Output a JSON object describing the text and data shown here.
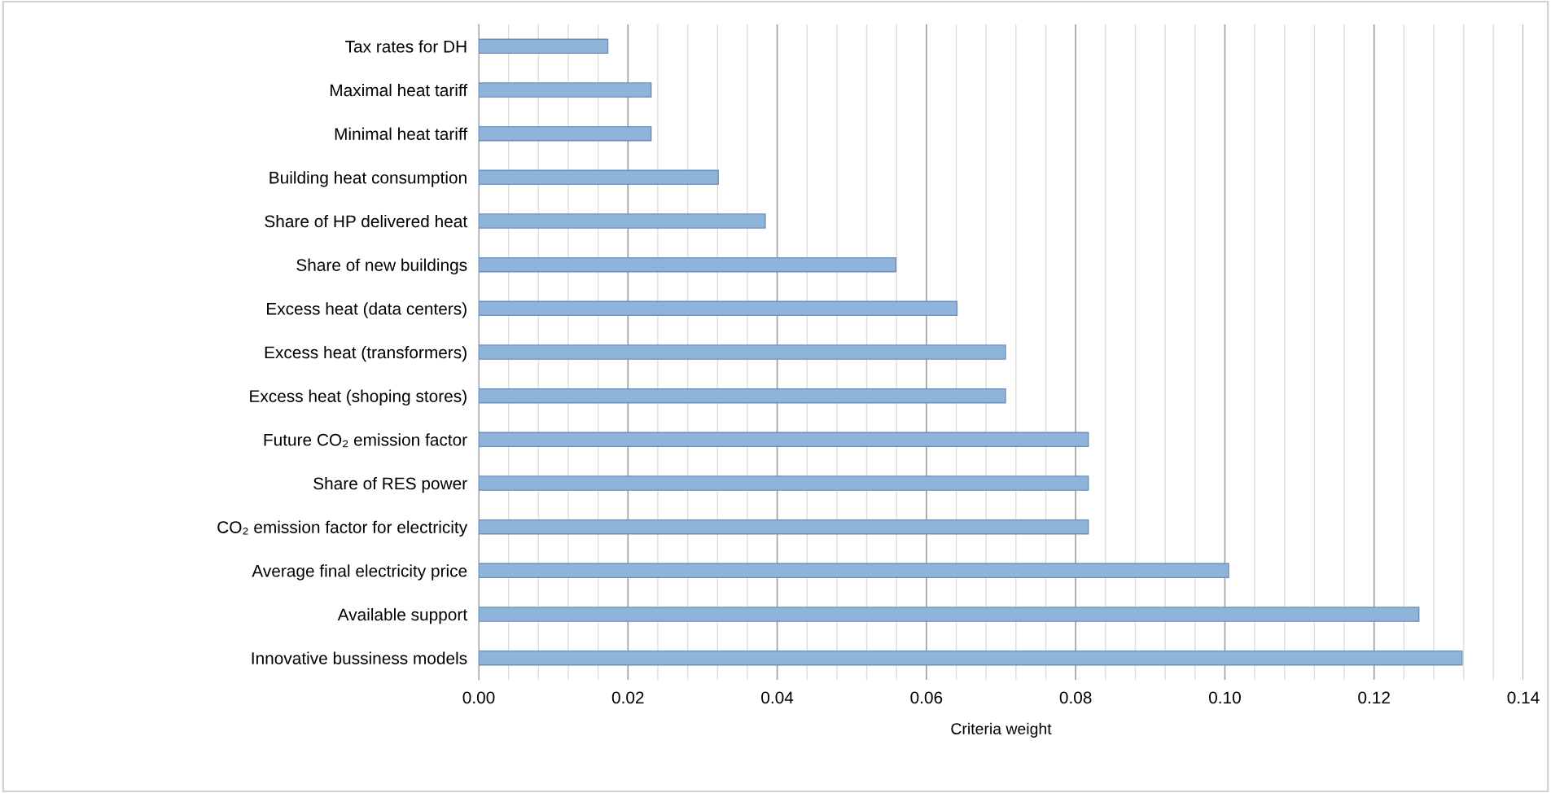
{
  "chart_data": {
    "type": "bar",
    "orientation": "horizontal",
    "xlabel": "Criteria weight",
    "categories": [
      "Tax rates for DH",
      "Maximal heat tariff",
      "Minimal heat tariff",
      "Building heat consumption",
      "Share of HP delivered heat",
      "Share of new buildings",
      "Excess heat (data centers)",
      "Excess heat (transformers)",
      "Excess heat (shoping stores)",
      "Future CO₂ emission factor",
      "Share of RES power",
      "CO₂ emission factor for electricity",
      "Average final electricity price",
      "Available support",
      "Innovative bussiness models"
    ],
    "values": [
      0.0173,
      0.0231,
      0.0231,
      0.0321,
      0.0384,
      0.0559,
      0.0641,
      0.0706,
      0.0706,
      0.0817,
      0.0817,
      0.0817,
      0.1005,
      0.126,
      0.1318
    ],
    "color": "#8fb4dc",
    "xlim": [
      0,
      0.14
    ],
    "xticks": [
      {
        "value": 0,
        "label": "0.00"
      },
      {
        "value": 0.02,
        "label": "0.02"
      },
      {
        "value": 0.04,
        "label": "0.04"
      },
      {
        "value": 0.06,
        "label": "0.06"
      },
      {
        "value": 0.08,
        "label": "0.08"
      },
      {
        "value": 0.1,
        "label": "0.10"
      },
      {
        "value": 0.12,
        "label": "0.12"
      },
      {
        "value": 0.14,
        "label": "0.14"
      }
    ],
    "grid": "x"
  }
}
